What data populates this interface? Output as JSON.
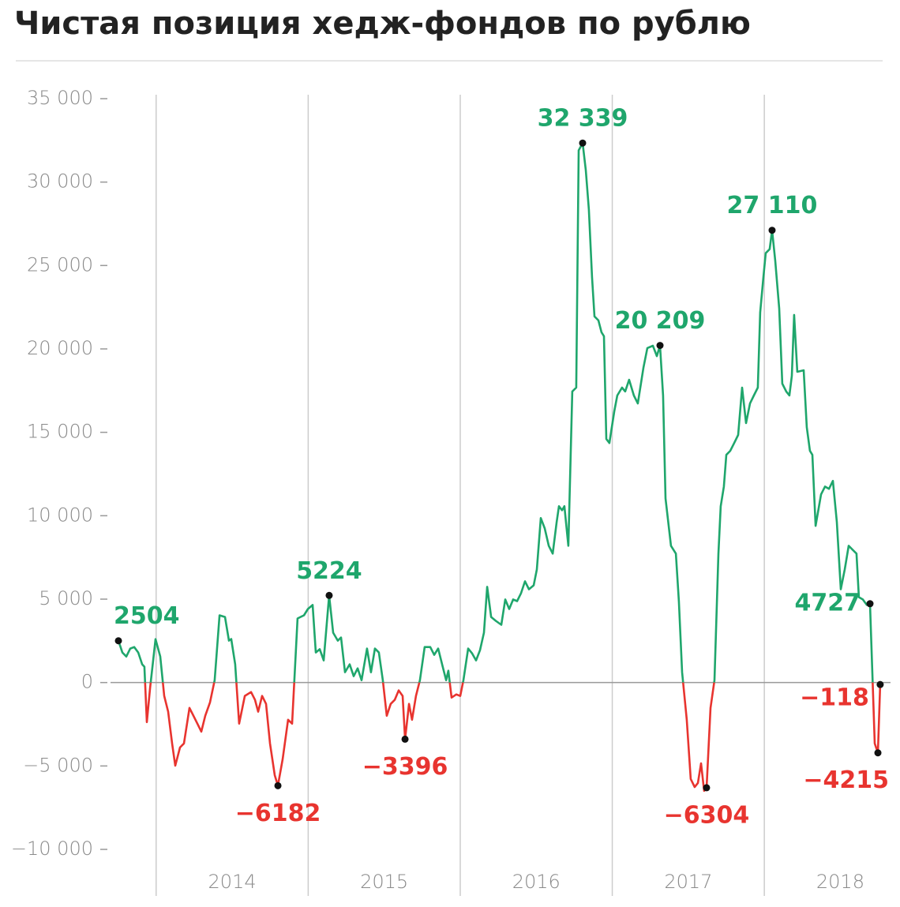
{
  "chart_data": {
    "type": "line",
    "title": "Чистая позиция хедж-фондов по рублю",
    "color": "#1fa66c",
    "negative_color": "#e8342f",
    "xlim": [
      2013.7,
      2018.83
    ],
    "xticks": [
      2014,
      2015,
      2016,
      2017,
      2018
    ],
    "ylim": [
      -10000,
      35000
    ],
    "yticks": [
      {
        "value": -10000,
        "label": "−10 000"
      },
      {
        "value": -5000,
        "label": "−5 000"
      },
      0,
      {
        "value": 5000,
        "label": "5 000"
      },
      {
        "value": 10000,
        "label": "10 000"
      },
      {
        "value": 15000,
        "label": "15 000"
      },
      {
        "value": 20000,
        "label": "20 000"
      },
      {
        "value": 25000,
        "label": "25 000"
      },
      {
        "value": 30000,
        "label": "30 000"
      },
      {
        "value": 35000,
        "label": "35 000"
      }
    ],
    "x": [
      2013.752,
      2013.778,
      2013.804,
      2013.83,
      2013.856,
      2013.882,
      2013.908,
      2013.923,
      2013.939,
      2013.96,
      2013.996,
      2014.027,
      2014.053,
      2014.079,
      2014.105,
      2014.126,
      2014.157,
      2014.183,
      2014.219,
      2014.245,
      2014.271,
      2014.297,
      2014.323,
      2014.354,
      2014.385,
      2014.417,
      2014.453,
      2014.479,
      2014.494,
      2014.52,
      2014.546,
      2014.583,
      2014.624,
      2014.65,
      2014.671,
      2014.697,
      2014.723,
      2014.749,
      2014.78,
      2014.801,
      2014.832,
      2014.868,
      2014.894,
      2014.93,
      2014.972,
      2014.998,
      2015.029,
      2015.05,
      2015.076,
      2015.102,
      2015.138,
      2015.164,
      2015.195,
      2015.216,
      2015.242,
      2015.273,
      2015.299,
      2015.325,
      2015.351,
      2015.387,
      2015.413,
      2015.439,
      2015.465,
      2015.491,
      2015.517,
      2015.543,
      2015.569,
      2015.595,
      2015.621,
      2015.637,
      2015.663,
      2015.683,
      2015.709,
      2015.735,
      2015.766,
      2015.803,
      2015.829,
      2015.855,
      2015.881,
      2015.907,
      2015.922,
      2015.943,
      2015.974,
      2016.0,
      2016.021,
      2016.052,
      2016.078,
      2016.104,
      2016.13,
      2016.156,
      2016.177,
      2016.203,
      2016.234,
      2016.27,
      2016.296,
      2016.322,
      2016.348,
      2016.374,
      2016.4,
      2016.426,
      2016.452,
      2016.483,
      2016.504,
      2016.53,
      2016.556,
      2016.582,
      2016.608,
      2016.634,
      2016.649,
      2016.67,
      2016.685,
      2016.711,
      2016.737,
      2016.763,
      2016.779,
      2016.805,
      2016.826,
      2016.846,
      2016.867,
      2016.883,
      2016.909,
      2016.929,
      2016.945,
      2016.961,
      2016.981,
      2017.013,
      2017.033,
      2017.064,
      2017.085,
      2017.111,
      2017.142,
      2017.168,
      2017.205,
      2017.231,
      2017.267,
      2017.293,
      2017.314,
      2017.334,
      2017.35,
      2017.386,
      2017.418,
      2017.438,
      2017.459,
      2017.49,
      2017.516,
      2017.542,
      2017.563,
      2017.584,
      2017.604,
      2017.62,
      2017.646,
      2017.672,
      2017.698,
      2017.713,
      2017.734,
      2017.75,
      2017.776,
      2017.802,
      2017.828,
      2017.854,
      2017.88,
      2017.906,
      2017.931,
      2017.957,
      2017.973,
      2017.994,
      2018.009,
      2018.035,
      2018.051,
      2018.072,
      2018.098,
      2018.118,
      2018.144,
      2018.165,
      2018.181,
      2018.196,
      2018.217,
      2018.259,
      2018.279,
      2018.3,
      2018.316,
      2018.337,
      2018.373,
      2018.399,
      2018.425,
      2018.451,
      2018.477,
      2018.503,
      2018.529,
      2018.555,
      2018.58,
      2018.606,
      2018.622,
      2018.648,
      2018.674,
      2018.695,
      2018.726,
      2018.747,
      2018.762
    ],
    "values": [
      2504,
      1800,
      1560,
      2040,
      2130,
      1800,
      1090,
      950,
      -2370,
      -330,
      2600,
      1560,
      -800,
      -1750,
      -3650,
      -4980,
      -3890,
      -3650,
      -1520,
      -1990,
      -2460,
      -2940,
      -1990,
      -1190,
      140,
      4030,
      3930,
      2510,
      2610,
      1090,
      -2460,
      -800,
      -570,
      -1040,
      -1750,
      -800,
      -1280,
      -3650,
      -5550,
      -6182,
      -4600,
      -2230,
      -2460,
      3840,
      4030,
      4410,
      4650,
      1800,
      2000,
      1330,
      5224,
      2990,
      2510,
      2700,
      620,
      1090,
      380,
      850,
      140,
      2040,
      620,
      2040,
      1800,
      140,
      -1990,
      -1280,
      -1040,
      -470,
      -800,
      -3396,
      -1280,
      -2230,
      -800,
      140,
      2130,
      2130,
      1660,
      2040,
      1090,
      140,
      710,
      -900,
      -710,
      -800,
      140,
      2040,
      1750,
      1330,
      1940,
      2990,
      5740,
      3930,
      3700,
      3460,
      4980,
      4410,
      4980,
      4880,
      5360,
      6070,
      5590,
      5830,
      6780,
      9860,
      9240,
      8200,
      7730,
      9620,
      10570,
      10330,
      10570,
      8200,
      17450,
      17680,
      31900,
      32339,
      30720,
      28350,
      24310,
      21950,
      21710,
      21000,
      20760,
      14600,
      14360,
      16260,
      17210,
      17680,
      17450,
      18150,
      17210,
      16730,
      18870,
      20050,
      20190,
      19570,
      20209,
      17210,
      11040,
      8200,
      7730,
      4880,
      620,
      -2230,
      -5780,
      -6260,
      -6020,
      -4840,
      -6490,
      -6304,
      -1520,
      140,
      7730,
      10570,
      11750,
      13650,
      13890,
      14360,
      14840,
      17680,
      15550,
      16730,
      17210,
      17680,
      22190,
      24310,
      25740,
      25980,
      27110,
      25270,
      22420,
      17920,
      17450,
      17210,
      18390,
      22040,
      18630,
      18720,
      15310,
      13890,
      13650,
      9390,
      11280,
      11750,
      11610,
      12090,
      9620,
      5590,
      6780,
      8200,
      7960,
      7730,
      5120,
      4980,
      4650,
      4727,
      -3650,
      -4215,
      -118
    ],
    "value_labels": [
      "2504",
      null,
      null,
      null,
      null,
      null,
      null,
      null,
      null,
      null,
      null,
      null,
      null,
      null,
      null,
      null,
      null,
      null,
      null,
      null,
      null,
      null,
      null,
      null,
      null,
      null,
      null,
      null,
      null,
      null,
      null,
      null,
      null,
      null,
      null,
      null,
      null,
      null,
      null,
      "−6182",
      null,
      null,
      null,
      null,
      null,
      null,
      null,
      null,
      null,
      null,
      "5224",
      null,
      null,
      null,
      null,
      null,
      null,
      null,
      null,
      null,
      null,
      null,
      null,
      null,
      null,
      null,
      null,
      null,
      null,
      "−3396",
      null,
      null,
      null,
      null,
      null,
      null,
      null,
      null,
      null,
      null,
      null,
      null,
      null,
      null,
      null,
      null,
      null,
      null,
      null,
      null,
      null,
      null,
      null,
      null,
      null,
      null,
      null,
      null,
      null,
      null,
      null,
      null,
      null,
      null,
      null,
      null,
      null,
      null,
      null,
      null,
      null,
      null,
      null,
      null,
      null,
      "32 339",
      null,
      null,
      null,
      null,
      null,
      null,
      null,
      null,
      null,
      null,
      null,
      null,
      null,
      null,
      null,
      null,
      null,
      null,
      null,
      null,
      "20 209",
      null,
      null,
      null,
      null,
      null,
      null,
      null,
      null,
      null,
      null,
      null,
      null,
      "−6304",
      null,
      null,
      null,
      null,
      null,
      null,
      null,
      null,
      null,
      null,
      null,
      null,
      null,
      null,
      null,
      null,
      null,
      null,
      "27 110",
      null,
      null,
      null,
      null,
      null,
      null,
      null,
      null,
      null,
      null,
      null,
      null,
      null,
      null,
      null,
      null,
      null,
      null,
      null,
      null,
      null,
      null,
      null,
      null,
      null,
      null,
      "4727",
      null,
      "−4215",
      "−118"
    ]
  }
}
